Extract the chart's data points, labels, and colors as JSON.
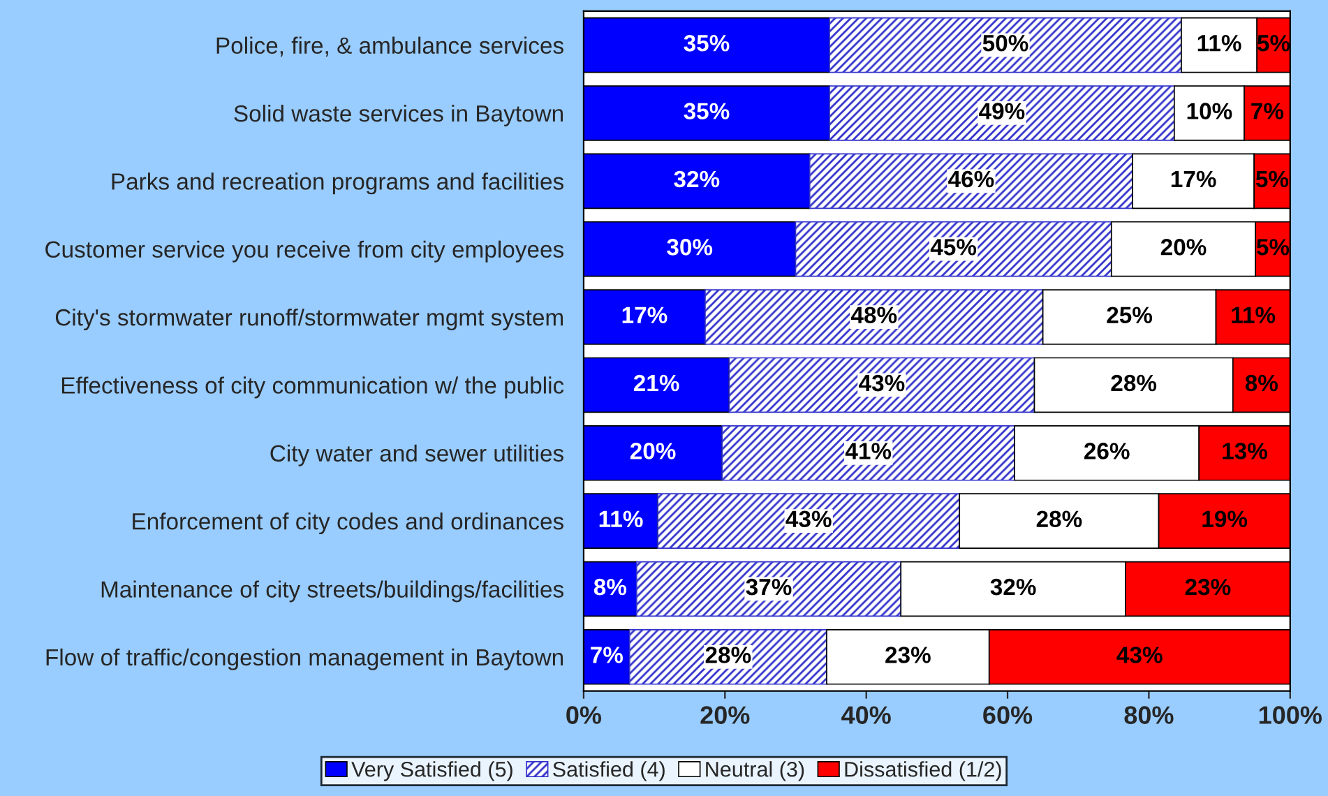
{
  "chart_data": {
    "type": "bar",
    "orientation": "horizontal",
    "stacked": true,
    "categories": [
      "Police, fire, & ambulance services",
      "Solid waste services in Baytown",
      "Parks and recreation programs and facilities",
      "Customer service you receive from city employees",
      "City's stormwater runoff/stormwater mgmt system",
      "Effectiveness of city communication w/ the public",
      "City water and sewer utilities",
      "Enforcement of city codes and ordinances",
      "Maintenance of city streets/buildings/facilities",
      "Flow of traffic/congestion management in Baytown"
    ],
    "series": [
      {
        "name": "Very Satisfied (5)",
        "color": "#0000ff",
        "values": [
          34.8,
          34.8,
          32.0,
          30.0,
          17.2,
          20.6,
          19.6,
          10.5,
          7.5,
          6.5
        ],
        "value_labels": [
          "35%",
          "35%",
          "32%",
          "30%",
          "17%",
          "21%",
          "20%",
          "11%",
          "8%",
          "7%"
        ]
      },
      {
        "name": "Satisfied (4)",
        "color": "#3333cc",
        "values": [
          49.8,
          48.8,
          45.7,
          44.7,
          47.8,
          43.2,
          41.4,
          42.7,
          37.4,
          27.9
        ],
        "value_labels": [
          "50%",
          "49%",
          "46%",
          "45%",
          "48%",
          "43%",
          "41%",
          "43%",
          "37%",
          "28%"
        ]
      },
      {
        "name": "Neutral (3)",
        "color": "#ffffff",
        "values": [
          10.7,
          9.9,
          17.2,
          20.4,
          24.5,
          28.1,
          26.1,
          28.2,
          31.8,
          23.0
        ],
        "value_labels": [
          "11%",
          "10%",
          "17%",
          "20%",
          "25%",
          "28%",
          "26%",
          "28%",
          "32%",
          "23%"
        ]
      },
      {
        "name": "Dissatisfied (1/2)",
        "color": "#ff0000",
        "values": [
          4.7,
          6.5,
          5.1,
          4.9,
          10.5,
          8.1,
          12.9,
          18.6,
          23.3,
          42.6
        ],
        "value_labels": [
          "5%",
          "7%",
          "5%",
          "5%",
          "11%",
          "8%",
          "13%",
          "19%",
          "23%",
          "43%"
        ]
      }
    ],
    "xlim": [
      0,
      100
    ],
    "xticks": [
      {
        "value": 0,
        "label": "0%"
      },
      {
        "value": 20,
        "label": "20%"
      },
      {
        "value": 40,
        "label": "40%"
      },
      {
        "value": 60,
        "label": "60%"
      },
      {
        "value": 80,
        "label": "80%"
      },
      {
        "value": 100,
        "label": "100%"
      }
    ],
    "legend": "bottom",
    "grid": false
  }
}
